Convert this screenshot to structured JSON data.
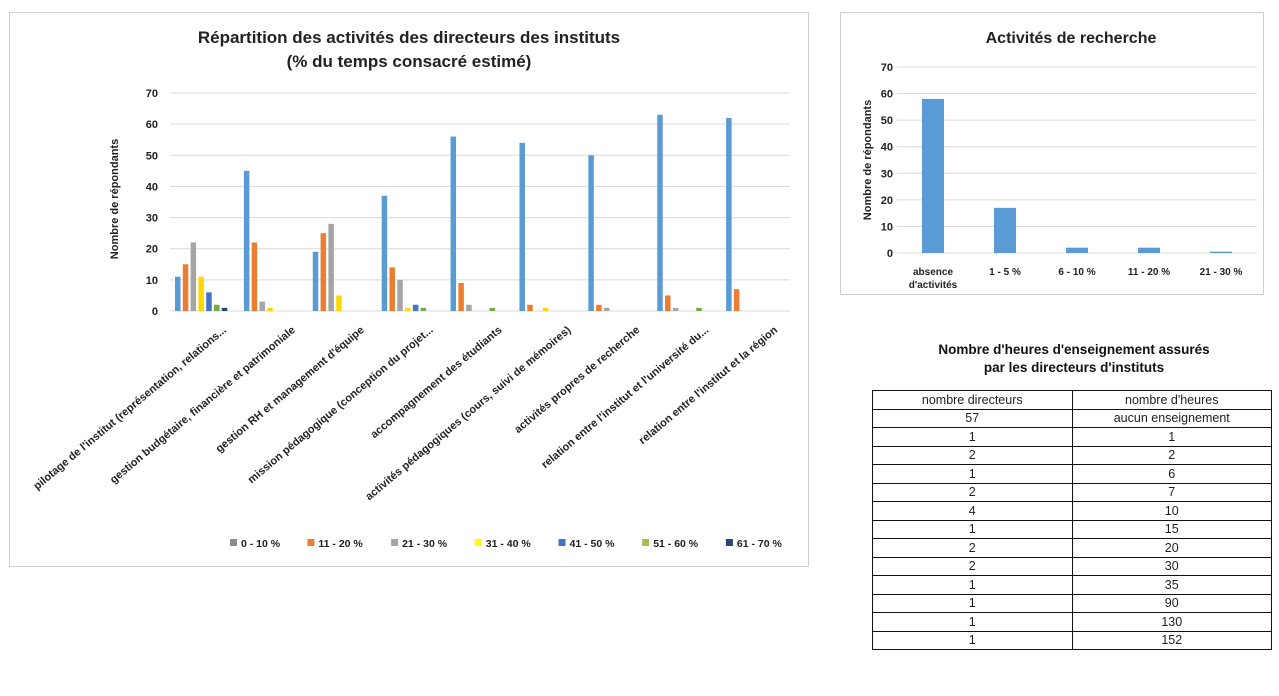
{
  "chart_data": [
    {
      "type": "bar",
      "title": "Répartition des activités des directeurs des instituts",
      "subtitle": "(% du temps consacré estimé)",
      "ylabel": "Nombre de répondants",
      "ylim": [
        0,
        70
      ],
      "yticks": [
        "70",
        "60",
        "50",
        "40",
        "30",
        "20",
        "10",
        "0"
      ],
      "grid": true,
      "legend_position": "bottom",
      "categories": [
        "pilotage de l'institut (représentation, relations...",
        "gestion budgétaire, financière et patrimoniale",
        "gestion RH et management d'équipe",
        "mission pédagogique (conception du projet...",
        "accompagnement des étudiants",
        "activités pédagogiques (cours, suivi de mémoires)",
        "activités propres de recherche",
        "relation entre l'institut et l'université du...",
        "relation entre l'institut et la région"
      ],
      "series": [
        {
          "name": "0 - 10 %",
          "color": "#5b9bd5",
          "legend_color": "#8c8c8c",
          "values": [
            11,
            45,
            19,
            37,
            56,
            54,
            50,
            63,
            62
          ]
        },
        {
          "name": "11 - 20 %",
          "color": "#ed7d31",
          "values": [
            15,
            22,
            25,
            14,
            9,
            2,
            2,
            5,
            7
          ]
        },
        {
          "name": "21 - 30 %",
          "color": "#a5a5a5",
          "values": [
            22,
            3,
            28,
            10,
            2,
            0,
            1,
            1,
            0
          ]
        },
        {
          "name": "31 - 40 %",
          "color": "#ffd700",
          "legend_color": "#ffff00",
          "values": [
            11,
            1,
            5,
            1,
            0,
            1,
            0,
            0,
            0
          ]
        },
        {
          "name": "41 - 50 %",
          "color": "#4472c4",
          "values": [
            6,
            0,
            0,
            2,
            0,
            0,
            0,
            0,
            0
          ]
        },
        {
          "name": "51 - 60 %",
          "color": "#70ad47",
          "legend_color": "#a9b850",
          "values": [
            2,
            0,
            0,
            1,
            1,
            0,
            0,
            1,
            0
          ]
        },
        {
          "name": "61 - 70 %",
          "color": "#264478",
          "values": [
            1,
            0,
            0,
            0,
            0,
            0,
            0,
            0,
            0
          ]
        }
      ]
    },
    {
      "type": "bar",
      "title": "Activités de recherche",
      "ylabel": "Nombre de répondants",
      "ylim": [
        0,
        70
      ],
      "yticks": [
        "70",
        "60",
        "50",
        "40",
        "30",
        "20",
        "10",
        "0"
      ],
      "grid": true,
      "color": "#5b9bd5",
      "categories": [
        "absence d'activités",
        "1 - 5 %",
        "6 - 10 %",
        "11 - 20 %",
        "21 - 30 %"
      ],
      "category_lines": [
        [
          "absence",
          "d'activités"
        ],
        [
          "1 - 5 %"
        ],
        [
          "6 - 10 %"
        ],
        [
          "11 - 20 %"
        ],
        [
          "21 - 30 %"
        ]
      ],
      "values": [
        58,
        17,
        2,
        2,
        0.5
      ]
    }
  ],
  "table": {
    "title_line1": "Nombre d'heures d'enseignement assurés",
    "title_line2": "par les directeurs d'instituts",
    "headers": [
      "nombre directeurs",
      "nombre d'heures"
    ],
    "rows": [
      [
        "57",
        "aucun enseignement"
      ],
      [
        "1",
        "1"
      ],
      [
        "2",
        "2"
      ],
      [
        "1",
        "6"
      ],
      [
        "2",
        "7"
      ],
      [
        "4",
        "10"
      ],
      [
        "1",
        "15"
      ],
      [
        "2",
        "20"
      ],
      [
        "2",
        "30"
      ],
      [
        "1",
        "35"
      ],
      [
        "1",
        "90"
      ],
      [
        "1",
        "130"
      ],
      [
        "1",
        "152"
      ]
    ]
  }
}
